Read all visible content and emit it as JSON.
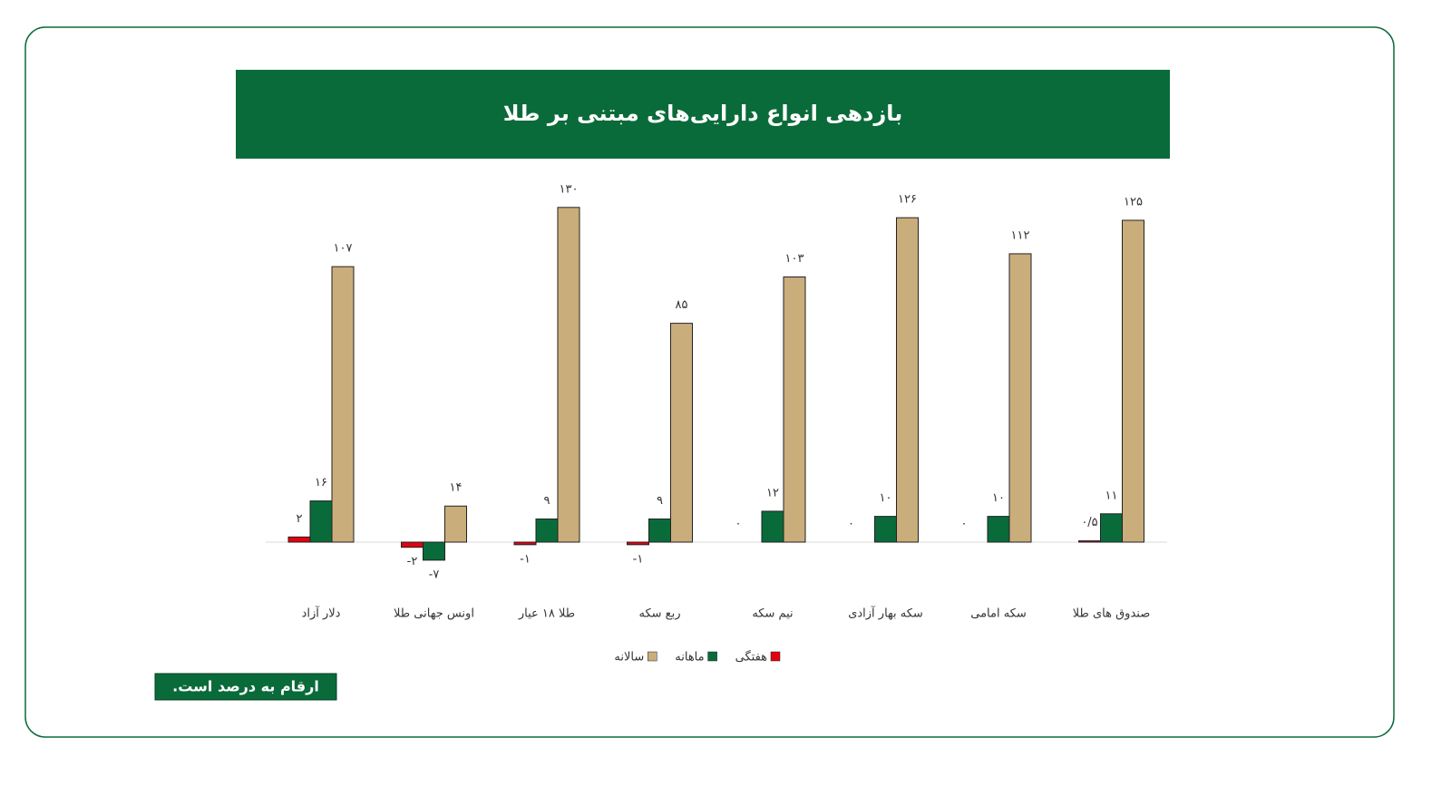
{
  "chart_data": {
    "type": "bar",
    "title": "بازدهی انواع دارایی‌های مبتنی بر طلا",
    "categories": [
      "دلار آزاد",
      "اونس جهانی طلا",
      "طلا ۱۸ عیار",
      "ربع سکه",
      "نیم سکه",
      "سکه بهار آزادی",
      "سکه امامی",
      "صندوق های طلا"
    ],
    "series": [
      {
        "name": "هفتگی",
        "color": "#e3000f",
        "values": [
          2,
          -2,
          -1,
          -1,
          0,
          0,
          0,
          0.5
        ],
        "value_labels": [
          "۲",
          "-۲",
          "-۱",
          "-۱",
          "۰",
          "۰",
          "۰",
          "۰/۵"
        ]
      },
      {
        "name": "ماهانه",
        "color": "#0a6b3a",
        "values": [
          16,
          -7,
          9,
          9,
          12,
          10,
          10,
          11
        ],
        "value_labels": [
          "۱۶",
          "-۷",
          "۹",
          "۹",
          "۱۲",
          "۱۰",
          "۱۰",
          "۱۱"
        ]
      },
      {
        "name": "سالانه",
        "color": "#c9ad7b",
        "values": [
          107,
          14,
          130,
          85,
          103,
          126,
          112,
          125
        ],
        "value_labels": [
          "۱۰۷",
          "۱۴",
          "۱۳۰",
          "۸۵",
          "۱۰۳",
          "۱۲۶",
          "۱۱۲",
          "۱۲۵"
        ]
      }
    ],
    "legend": "bottom",
    "note": "ارقام به درصد است."
  }
}
